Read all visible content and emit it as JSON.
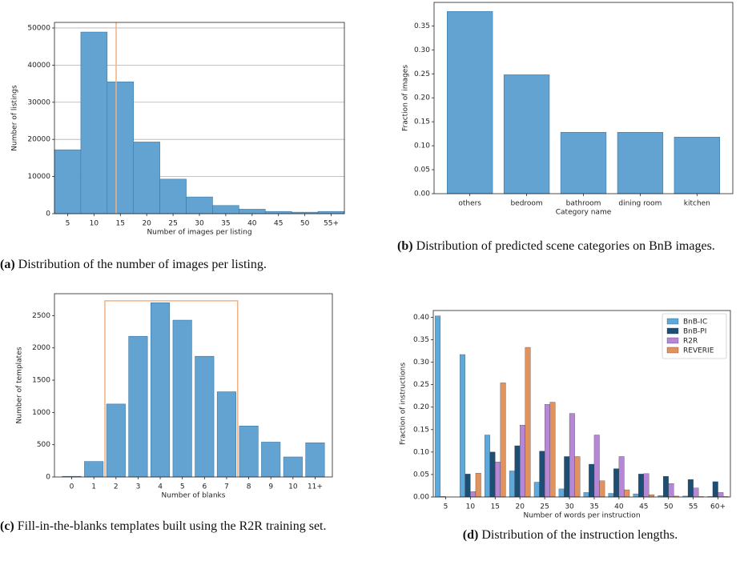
{
  "chart_data": [
    {
      "type": "histogram",
      "x_label": "Number of images per listing",
      "y_label": "Number of listings",
      "caption": {
        "label": "(a)",
        "text": "Distribution of the number of images per listing."
      },
      "bins": [
        2.5,
        7.5,
        12.5,
        17.5,
        22.5,
        27.5,
        32.5,
        37.5,
        42.5,
        47.5,
        52.5,
        57.5
      ],
      "counts": [
        17200,
        48900,
        35500,
        19300,
        9300,
        4500,
        2200,
        1200,
        600,
        400,
        600
      ],
      "color": "#62a3d2",
      "vline": 14.2,
      "vline_color": "#f4b183",
      "xlim": [
        2.5,
        57.5
      ],
      "xticks": [
        5,
        10,
        15,
        20,
        25,
        30,
        35,
        40,
        45,
        50,
        {
          "value": 55,
          "label": "55+"
        }
      ],
      "ylim": [
        0,
        51500
      ],
      "yticks": [
        0,
        10000,
        20000,
        30000,
        40000,
        50000
      ],
      "grid": true
    },
    {
      "type": "bar",
      "x_label": "Category name",
      "y_label": "Fraction of images",
      "caption": {
        "label": "(b)",
        "text": "Distribution of predicted scene categories on BnB images."
      },
      "categories": [
        "others",
        "bedroom",
        "bathroom",
        "dining room",
        "kitchen"
      ],
      "values": [
        0.38,
        0.248,
        0.128,
        0.128,
        0.118
      ],
      "color": "#62a3d2",
      "ylim": [
        0,
        0.399
      ],
      "yticks": [
        {
          "value": 0,
          "label": "0.00"
        },
        {
          "value": 0.05,
          "label": "0.05"
        },
        {
          "value": 0.1,
          "label": "0.10"
        },
        {
          "value": 0.15,
          "label": "0.15"
        },
        {
          "value": 0.2,
          "label": "0.20"
        },
        {
          "value": 0.25,
          "label": "0.25"
        },
        {
          "value": 0.3,
          "label": "0.30"
        },
        {
          "value": 0.35,
          "label": "0.35"
        }
      ],
      "grid": false
    },
    {
      "type": "bar",
      "x_label": "Number of blanks",
      "y_label": "Number of templates",
      "caption": {
        "label": "(c)",
        "text": "Fill-in-the-blanks templates built using the R2R training set."
      },
      "categories": [
        "0",
        "1",
        "2",
        "3",
        "4",
        "5",
        "6",
        "7",
        "8",
        "9",
        "10",
        "11+"
      ],
      "values": [
        10,
        240,
        1130,
        2180,
        2700,
        2430,
        1870,
        1320,
        790,
        540,
        310,
        530
      ],
      "color": "#62a3d2",
      "highlight": {
        "from": 1.5,
        "to": 7.5,
        "height": 2730,
        "color": "#f4b183"
      },
      "ylim": [
        0,
        2840
      ],
      "yticks": [
        0,
        500,
        1000,
        1500,
        2000,
        2500
      ],
      "grid": false
    },
    {
      "type": "grouped_bar",
      "x_label": "Number of words per instruction",
      "y_label": "Fraction of instructions",
      "caption": {
        "label": "(d)",
        "text": "Distribution of the instruction lengths."
      },
      "categories": [
        "5",
        "10",
        "15",
        "20",
        "25",
        "30",
        "35",
        "40",
        "45",
        "50",
        "55",
        "60+"
      ],
      "series": [
        {
          "name": "BnB-IC",
          "color": "#5ea9dc",
          "values": [
            0.403,
            0.317,
            0.138,
            0.058,
            0.033,
            0.018,
            0.01,
            0.008,
            0.007,
            0.003,
            0.002,
            0.001
          ]
        },
        {
          "name": "BnB-PI",
          "color": "#1d4e74",
          "values": [
            0.001,
            0.051,
            0.1,
            0.114,
            0.102,
            0.09,
            0.073,
            0.063,
            0.051,
            0.046,
            0.039,
            0.034
          ]
        },
        {
          "name": "R2R",
          "color": "#b587d6",
          "values": [
            0,
            0.012,
            0.078,
            0.16,
            0.206,
            0.186,
            0.138,
            0.09,
            0.052,
            0.03,
            0.02,
            0.01
          ]
        },
        {
          "name": "REVERIE",
          "color": "#e0925f",
          "values": [
            0,
            0.053,
            0.254,
            0.333,
            0.211,
            0.09,
            0.036,
            0.016,
            0.005,
            0.002,
            0.001,
            0.001
          ]
        }
      ],
      "legend": "upper right",
      "ylim": [
        0,
        0.415
      ],
      "yticks": [
        {
          "value": 0,
          "label": "0.00"
        },
        {
          "value": 0.05,
          "label": "0.05"
        },
        {
          "value": 0.1,
          "label": "0.10"
        },
        {
          "value": 0.15,
          "label": "0.15"
        },
        {
          "value": 0.2,
          "label": "0.20"
        },
        {
          "value": 0.25,
          "label": "0.25"
        },
        {
          "value": 0.3,
          "label": "0.30"
        },
        {
          "value": 0.35,
          "label": "0.35"
        },
        {
          "value": 0.4,
          "label": "0.40"
        }
      ],
      "grid": false
    }
  ]
}
